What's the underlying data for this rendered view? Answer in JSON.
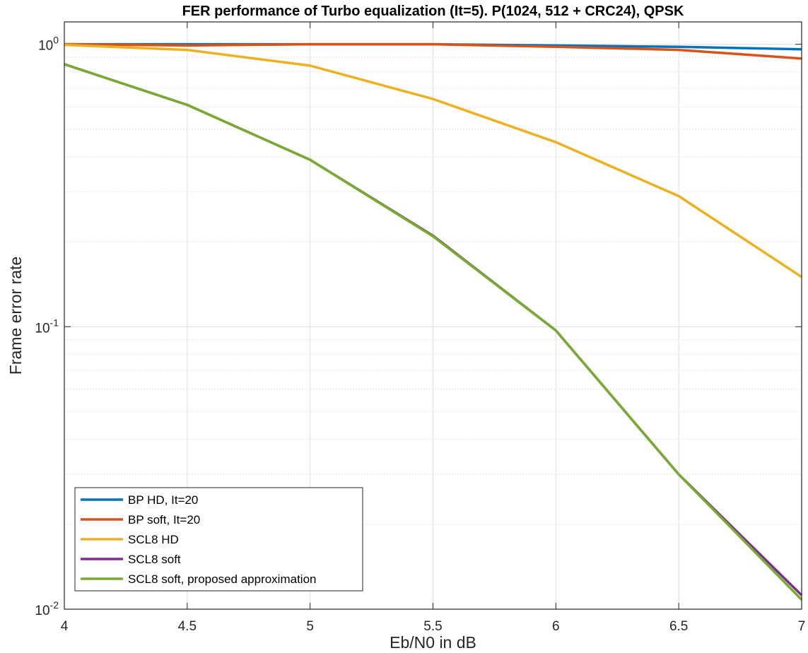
{
  "chart_data": {
    "type": "line",
    "title": "FER performance of Turbo equalization (It=5). P(1024, 512 + CRC24), QPSK",
    "xlabel": "Eb/N0 in dB",
    "ylabel": "Frame error rate",
    "xlim": [
      4,
      7
    ],
    "ylim": [
      0.01,
      1.2
    ],
    "yscale": "log",
    "grid": true,
    "legend_position": "bottom-left",
    "x_ticks": [
      "4",
      "4.5",
      "5",
      "5.5",
      "6",
      "6.5",
      "7"
    ],
    "y_ticks": [
      {
        "base": "10",
        "exp": "-2"
      },
      {
        "base": "10",
        "exp": "-1"
      },
      {
        "base": "10",
        "exp": "0"
      }
    ],
    "x": [
      4,
      4.5,
      5,
      5.5,
      6,
      6.5,
      7
    ],
    "series": [
      {
        "name": "BP HD, It=20",
        "color": "#0072BD",
        "values": [
          1.0,
          1.0,
          1.0,
          1.0,
          0.99,
          0.98,
          0.96
        ]
      },
      {
        "name": "BP soft, It=20",
        "color": "#D95319",
        "values": [
          1.0,
          0.99,
          1.0,
          1.0,
          0.98,
          0.955,
          0.89
        ]
      },
      {
        "name": "SCL8 HD",
        "color": "#EDB120",
        "values": [
          0.995,
          0.955,
          0.84,
          0.64,
          0.45,
          0.29,
          0.15
        ]
      },
      {
        "name": "SCL8 soft",
        "color": "#7E2F8E",
        "values": [
          0.85,
          0.61,
          0.39,
          0.21,
          0.097,
          0.03,
          0.0112
        ]
      },
      {
        "name": "SCL8 soft, proposed approximation",
        "color": "#77AC30",
        "values": [
          0.85,
          0.61,
          0.39,
          0.209,
          0.097,
          0.03,
          0.0108
        ]
      }
    ]
  }
}
